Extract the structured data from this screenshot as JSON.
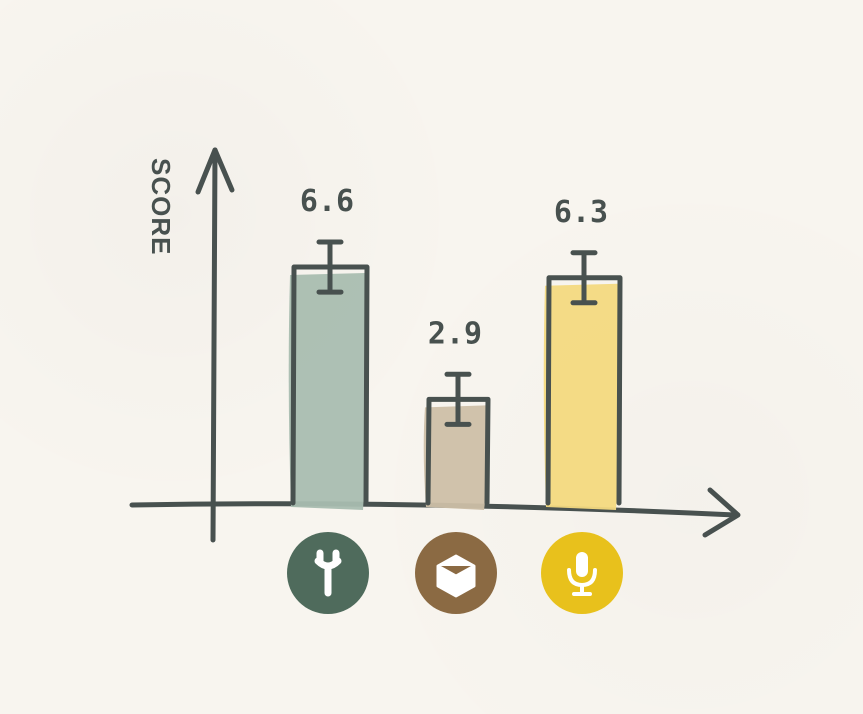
{
  "chart_data": {
    "type": "bar",
    "ylabel": "SCORE",
    "xlabel": "",
    "categories": [
      "wrench-icon",
      "box-icon",
      "microphone-icon"
    ],
    "values": [
      6.6,
      2.9,
      6.3
    ],
    "error": [
      0.7,
      0.7,
      0.7
    ],
    "ylim": [
      0,
      8
    ],
    "grid": false,
    "colors": {
      "ink": "#48514f",
      "bars": [
        "#a9bdb0",
        "#cdbfa7",
        "#f3d97f"
      ],
      "icons": [
        "#4f6b5c",
        "#8b6a43",
        "#e8c11c"
      ]
    }
  }
}
